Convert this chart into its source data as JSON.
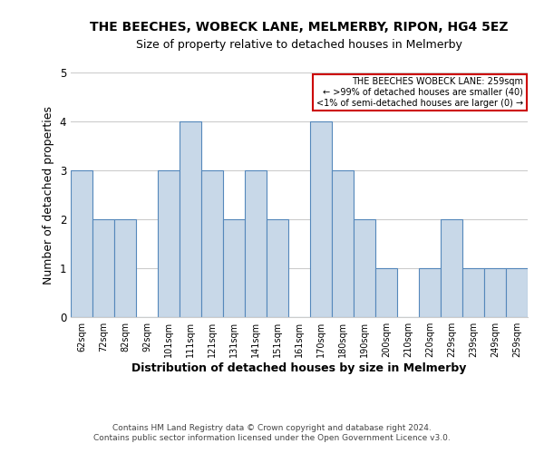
{
  "title": "THE BEECHES, WOBECK LANE, MELMERBY, RIPON, HG4 5EZ",
  "subtitle": "Size of property relative to detached houses in Melmerby",
  "xlabel": "Distribution of detached houses by size in Melmerby",
  "ylabel": "Number of detached properties",
  "bar_color": "#c8d8e8",
  "bar_edge_color": "#5588bb",
  "categories": [
    "62sqm",
    "72sqm",
    "82sqm",
    "92sqm",
    "101sqm",
    "111sqm",
    "121sqm",
    "131sqm",
    "141sqm",
    "151sqm",
    "161sqm",
    "170sqm",
    "180sqm",
    "190sqm",
    "200sqm",
    "210sqm",
    "220sqm",
    "229sqm",
    "239sqm",
    "249sqm",
    "259sqm"
  ],
  "values": [
    3,
    2,
    2,
    0,
    3,
    4,
    3,
    2,
    3,
    2,
    0,
    4,
    3,
    2,
    1,
    0,
    1,
    2,
    1,
    1,
    1
  ],
  "ylim": [
    0,
    5
  ],
  "yticks": [
    0,
    1,
    2,
    3,
    4,
    5
  ],
  "legend_title": "THE BEECHES WOBECK LANE: 259sqm",
  "legend_line1": "← >99% of detached houses are smaller (40)",
  "legend_line2": "<1% of semi-detached houses are larger (0) →",
  "legend_box_color": "#ffffff",
  "legend_box_edge_color": "#cc0000",
  "footer_line1": "Contains HM Land Registry data © Crown copyright and database right 2024.",
  "footer_line2": "Contains public sector information licensed under the Open Government Licence v3.0.",
  "background_color": "#ffffff",
  "grid_color": "#cccccc"
}
